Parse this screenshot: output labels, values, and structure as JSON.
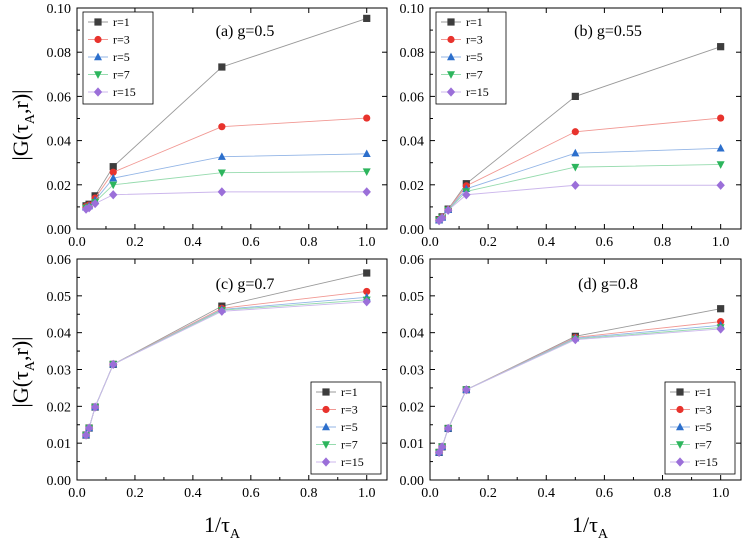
{
  "figure": {
    "ylabel": "|G(τA,r)|",
    "ylabel_main": "|G(τ",
    "ylabel_sub": "A",
    "ylabel_tail": ",r)|",
    "xlabel": "1/τA",
    "xlabel_main": "1/τ",
    "xlabel_sub": "A"
  },
  "series_styles": [
    {
      "name": "r=1",
      "color": "#3d3d3d",
      "line_color": "#9a9a9a",
      "marker": "square"
    },
    {
      "name": "r=3",
      "color": "#e8332d",
      "line_color": "#f19893",
      "marker": "circle"
    },
    {
      "name": "r=5",
      "color": "#2c6fcc",
      "line_color": "#93b5e6",
      "marker": "triangle-up"
    },
    {
      "name": "r=7",
      "color": "#2db55d",
      "line_color": "#96dbae",
      "marker": "triangle-down"
    },
    {
      "name": "r=15",
      "color": "#9b6fd9",
      "line_color": "#ccb7ec",
      "marker": "diamond"
    }
  ],
  "chart_data": [
    {
      "type": "line",
      "title": "(a) g=0.5",
      "legend_position": "top-left",
      "x": [
        0.03125,
        0.0417,
        0.0625,
        0.125,
        0.5,
        1.0
      ],
      "xlim": [
        0,
        1.07
      ],
      "ylim": [
        0,
        0.1
      ],
      "xticks": [
        "0.0",
        "0.2",
        "0.4",
        "0.6",
        "0.8",
        "1.0"
      ],
      "xtick_values": [
        0,
        0.2,
        0.4,
        0.6,
        0.8,
        1.0
      ],
      "yticks": [
        "0.00",
        "0.02",
        "0.04",
        "0.06",
        "0.08",
        "0.10"
      ],
      "ytick_values": [
        0,
        0.02,
        0.04,
        0.06,
        0.08,
        0.1
      ],
      "series": [
        {
          "name": "r=1",
          "values": [
            0.0105,
            0.0112,
            0.015,
            0.0282,
            0.0733,
            0.0953
          ]
        },
        {
          "name": "r=3",
          "values": [
            0.0102,
            0.0108,
            0.014,
            0.0257,
            0.0463,
            0.0502
          ]
        },
        {
          "name": "r=5",
          "values": [
            0.0098,
            0.0104,
            0.013,
            0.023,
            0.0327,
            0.034
          ]
        },
        {
          "name": "r=7",
          "values": [
            0.0095,
            0.01,
            0.0122,
            0.02,
            0.0255,
            0.026
          ]
        },
        {
          "name": "r=15",
          "values": [
            0.009,
            0.0096,
            0.0115,
            0.0155,
            0.0168,
            0.0168
          ]
        }
      ]
    },
    {
      "type": "line",
      "title": "(b) g=0.55",
      "legend_position": "top-left",
      "x": [
        0.03125,
        0.0417,
        0.0625,
        0.125,
        0.5,
        1.0
      ],
      "xlim": [
        0,
        1.07
      ],
      "ylim": [
        0,
        0.1
      ],
      "xticks": [
        "0.0",
        "0.2",
        "0.4",
        "0.6",
        "0.8",
        "1.0"
      ],
      "xtick_values": [
        0,
        0.2,
        0.4,
        0.6,
        0.8,
        1.0
      ],
      "yticks": [
        "0.00",
        "0.02",
        "0.04",
        "0.06",
        "0.08",
        "0.10"
      ],
      "ytick_values": [
        0,
        0.02,
        0.04,
        0.06,
        0.08,
        0.1
      ],
      "series": [
        {
          "name": "r=1",
          "values": [
            0.0042,
            0.0055,
            0.009,
            0.0205,
            0.06,
            0.0825
          ]
        },
        {
          "name": "r=3",
          "values": [
            0.0041,
            0.0054,
            0.0088,
            0.0195,
            0.044,
            0.0502
          ]
        },
        {
          "name": "r=5",
          "values": [
            0.004,
            0.0052,
            0.0087,
            0.0182,
            0.0343,
            0.0365
          ]
        },
        {
          "name": "r=7",
          "values": [
            0.0039,
            0.0051,
            0.0086,
            0.017,
            0.028,
            0.0292
          ]
        },
        {
          "name": "r=15",
          "values": [
            0.0038,
            0.005,
            0.0085,
            0.0155,
            0.0198,
            0.0198
          ]
        }
      ]
    },
    {
      "type": "line",
      "title": "(c) g=0.7",
      "legend_position": "bottom-right",
      "x": [
        0.03125,
        0.0417,
        0.0625,
        0.125,
        0.5,
        1.0
      ],
      "xlim": [
        0,
        1.07
      ],
      "ylim": [
        0,
        0.06
      ],
      "xticks": [
        "0.0",
        "0.2",
        "0.4",
        "0.6",
        "0.8",
        "1.0"
      ],
      "xtick_values": [
        0,
        0.2,
        0.4,
        0.6,
        0.8,
        1.0
      ],
      "yticks": [
        "0.00",
        "0.01",
        "0.02",
        "0.03",
        "0.04",
        "0.05",
        "0.06"
      ],
      "ytick_values": [
        0,
        0.01,
        0.02,
        0.03,
        0.04,
        0.05,
        0.06
      ],
      "series": [
        {
          "name": "r=1",
          "values": [
            0.0122,
            0.0141,
            0.0198,
            0.0314,
            0.0472,
            0.0562
          ]
        },
        {
          "name": "r=3",
          "values": [
            0.0122,
            0.0141,
            0.0198,
            0.0314,
            0.0466,
            0.0512
          ]
        },
        {
          "name": "r=5",
          "values": [
            0.0122,
            0.0141,
            0.0198,
            0.0314,
            0.0463,
            0.0496
          ]
        },
        {
          "name": "r=7",
          "values": [
            0.0122,
            0.0141,
            0.0198,
            0.0314,
            0.0461,
            0.0489
          ]
        },
        {
          "name": "r=15",
          "values": [
            0.0122,
            0.0141,
            0.0198,
            0.0314,
            0.0458,
            0.0484
          ]
        }
      ]
    },
    {
      "type": "line",
      "title": "(d) g=0.8",
      "legend_position": "bottom-right",
      "x": [
        0.03125,
        0.0417,
        0.0625,
        0.125,
        0.5,
        1.0
      ],
      "xlim": [
        0,
        1.07
      ],
      "ylim": [
        0,
        0.06
      ],
      "xticks": [
        "0.0",
        "0.2",
        "0.4",
        "0.6",
        "0.8",
        "1.0"
      ],
      "xtick_values": [
        0,
        0.2,
        0.4,
        0.6,
        0.8,
        1.0
      ],
      "yticks": [
        "0.00",
        "0.01",
        "0.02",
        "0.03",
        "0.04",
        "0.05",
        "0.06"
      ],
      "ytick_values": [
        0,
        0.01,
        0.02,
        0.03,
        0.04,
        0.05,
        0.06
      ],
      "series": [
        {
          "name": "r=1",
          "values": [
            0.0075,
            0.009,
            0.014,
            0.0245,
            0.039,
            0.0465
          ]
        },
        {
          "name": "r=3",
          "values": [
            0.0075,
            0.009,
            0.014,
            0.0245,
            0.0387,
            0.043
          ]
        },
        {
          "name": "r=5",
          "values": [
            0.0075,
            0.009,
            0.014,
            0.0245,
            0.0385,
            0.042
          ]
        },
        {
          "name": "r=7",
          "values": [
            0.0075,
            0.009,
            0.014,
            0.0245,
            0.0383,
            0.0414
          ]
        },
        {
          "name": "r=15",
          "values": [
            0.0075,
            0.009,
            0.014,
            0.0245,
            0.0381,
            0.041
          ]
        }
      ]
    }
  ]
}
